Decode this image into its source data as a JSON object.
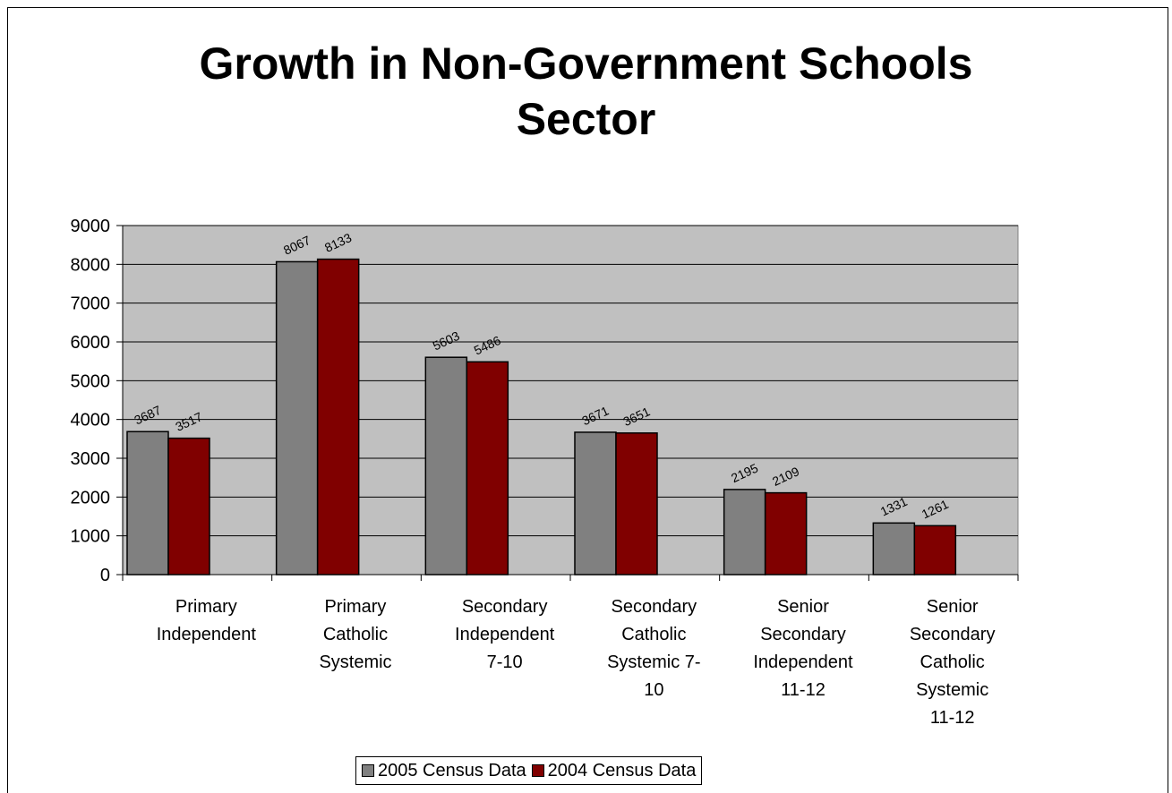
{
  "chart_data": {
    "type": "bar",
    "title_lines": [
      "Growth in Non-Government Schools",
      "Sector"
    ],
    "categories": [
      [
        "Primary",
        "Independent"
      ],
      [
        "Primary",
        "Catholic",
        "Systemic"
      ],
      [
        "Secondary",
        "Independent",
        "7-10"
      ],
      [
        "Secondary",
        "Catholic",
        "Systemic 7-",
        "10"
      ],
      [
        "Senior",
        "Secondary",
        "Independent",
        "11-12"
      ],
      [
        "Senior",
        "Secondary",
        "Catholic",
        "Systemic",
        "11-12"
      ]
    ],
    "series": [
      {
        "name": "2005 Census Data",
        "color": "#808080",
        "values": [
          3687,
          8067,
          5603,
          3671,
          2195,
          1331
        ]
      },
      {
        "name": "2004 Census Data",
        "color": "#800000",
        "values": [
          3517,
          8133,
          5486,
          3651,
          2109,
          1261
        ]
      }
    ],
    "y_ticks": [
      "0",
      "1000",
      "2000",
      "3000",
      "4000",
      "5000",
      "6000",
      "7000",
      "8000",
      "9000"
    ],
    "ylim": [
      0,
      9000
    ],
    "grid": true,
    "plot_background": "#c0c0c0",
    "legend_position": "bottom"
  }
}
